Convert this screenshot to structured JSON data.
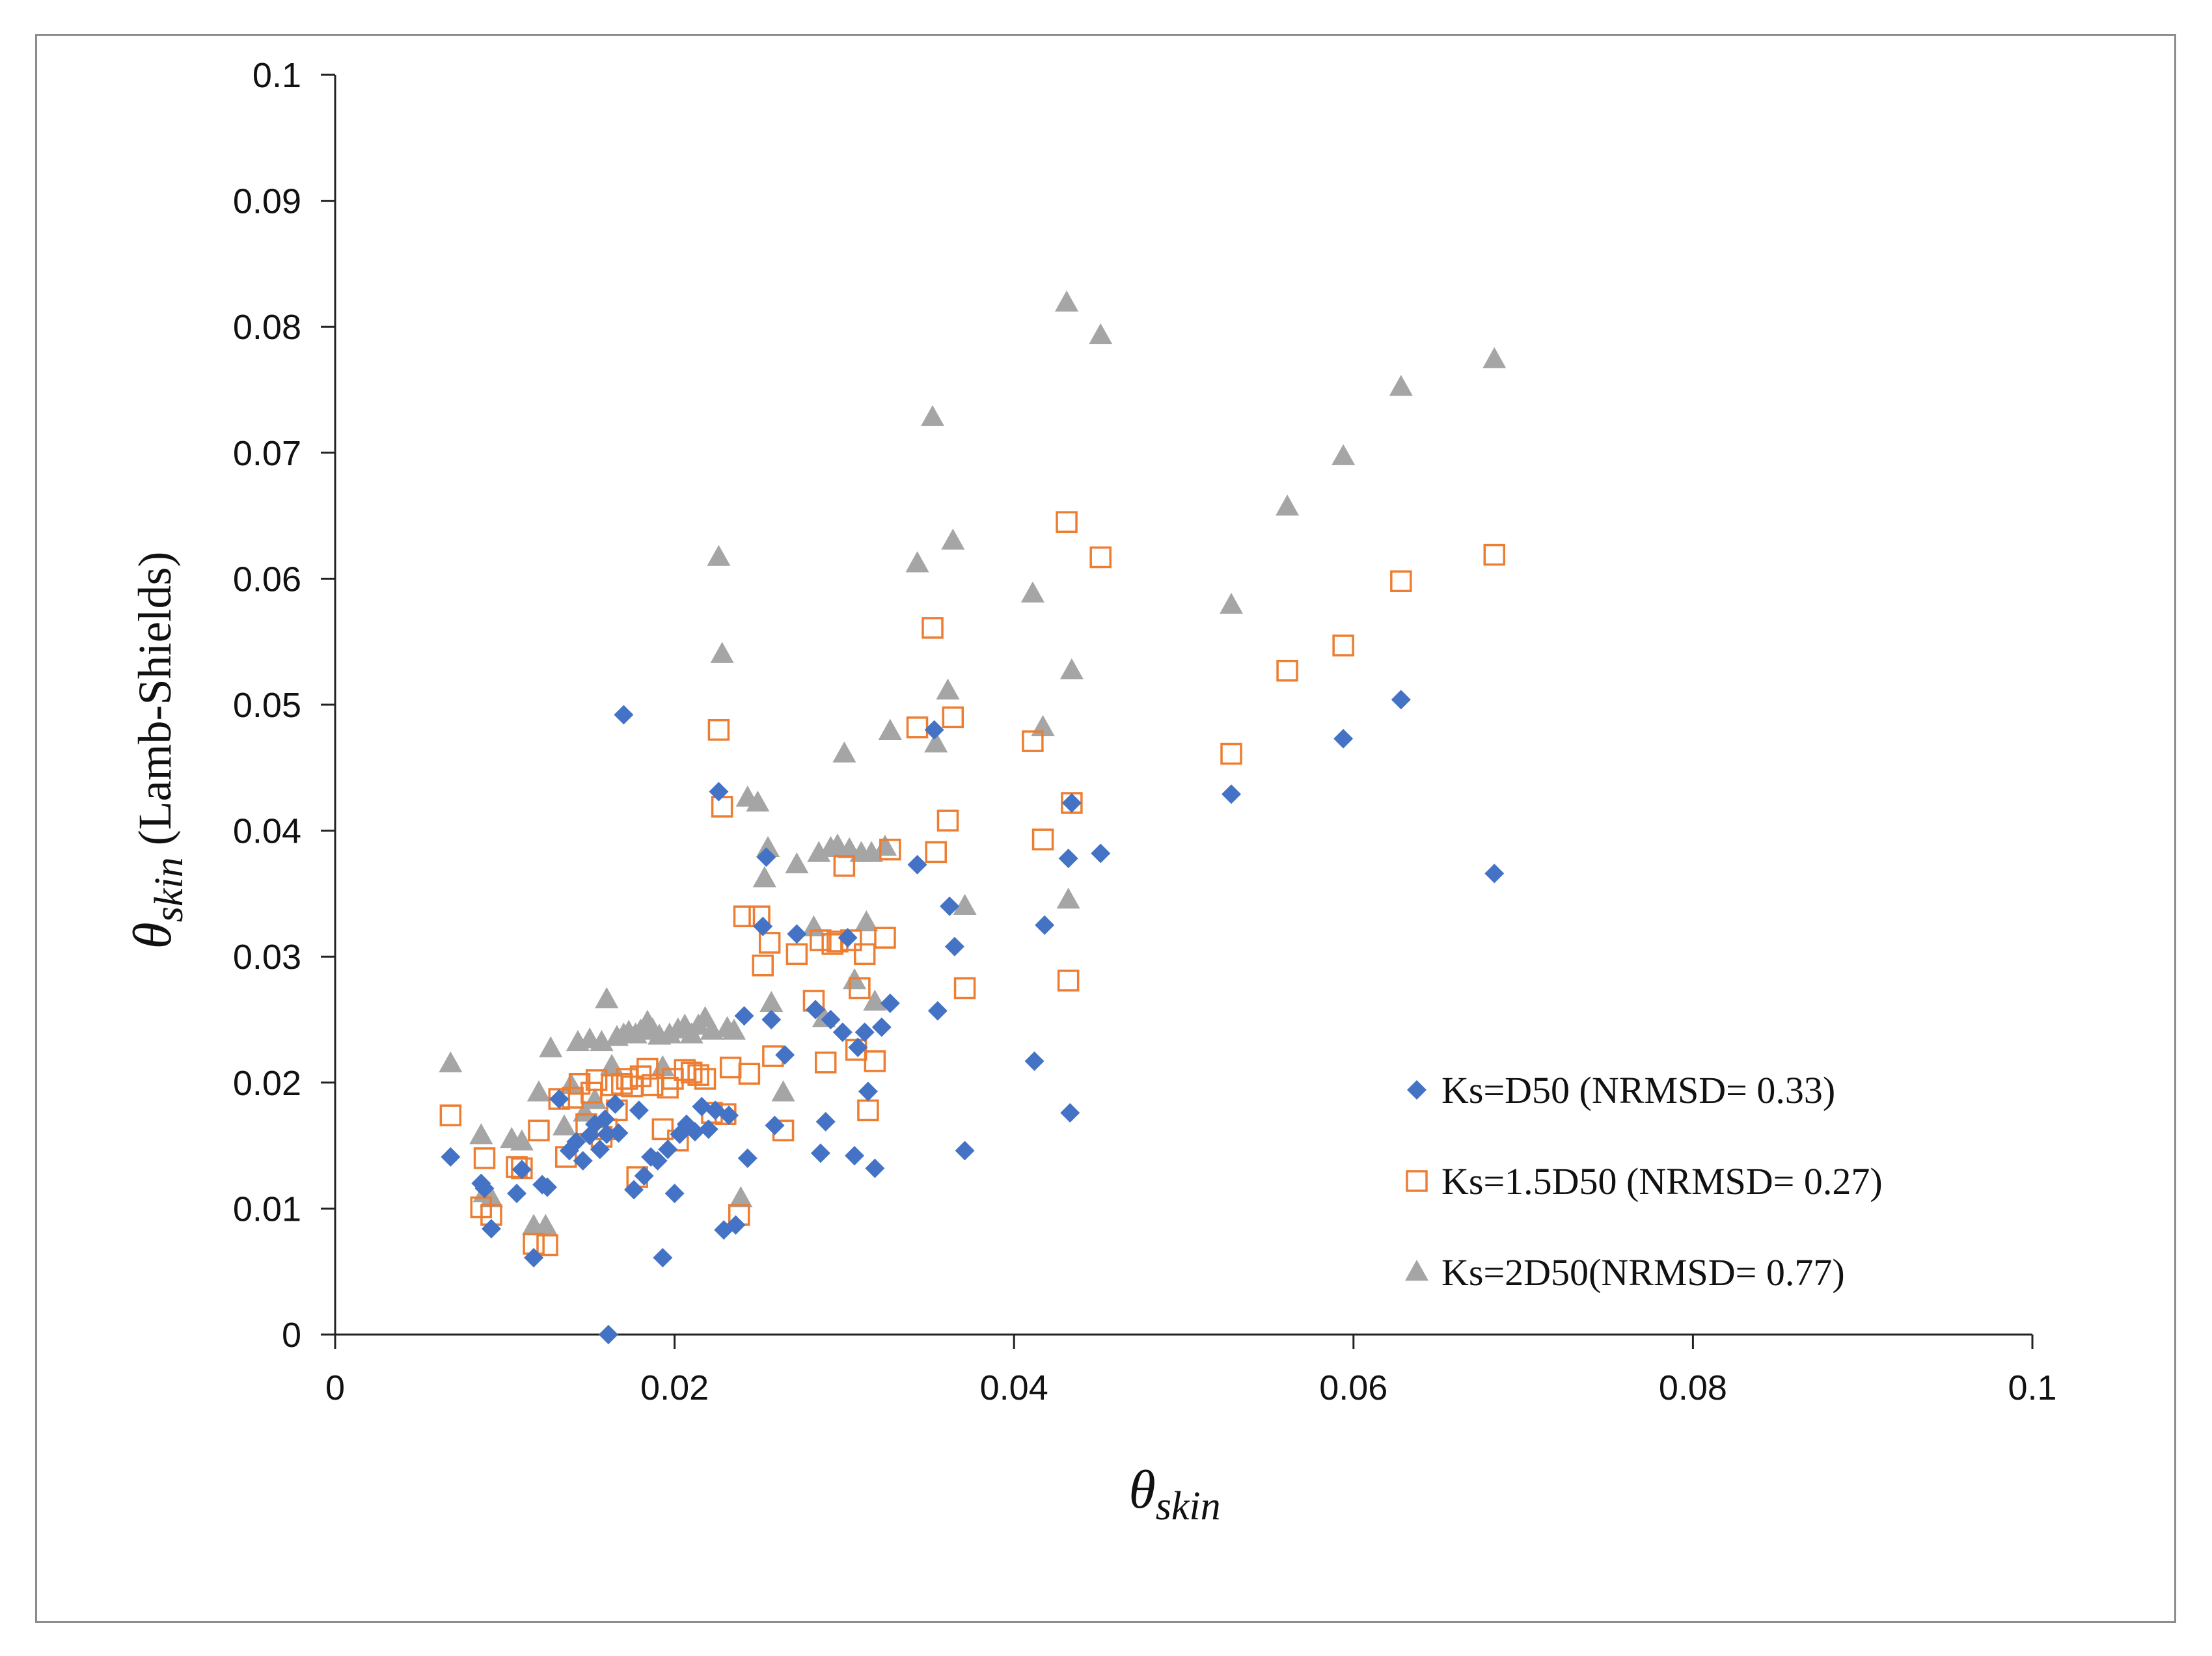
{
  "chart_data": {
    "type": "scatter",
    "title": "",
    "xlabel": {
      "symbol": "θ",
      "subscript": "skin"
    },
    "ylabel": {
      "symbol": "θ",
      "subscript": "skin",
      "suffix": " (Lamb-Shields)"
    },
    "xlim": [
      0,
      0.1
    ],
    "ylim": [
      0,
      0.1
    ],
    "x_ticks": [
      "0",
      "0.02",
      "0.04",
      "0.06",
      "0.08",
      "0.1"
    ],
    "y_ticks": [
      "0",
      "0.01",
      "0.02",
      "0.03",
      "0.04",
      "0.05",
      "0.06",
      "0.07",
      "0.08",
      "0.09",
      "0.1"
    ],
    "grid": false,
    "legend_position": "lower-right",
    "series": [
      {
        "name": "Ks=D50 (NRMSD= 0.33)",
        "marker": "diamond",
        "color": "#4472c4",
        "points": [
          [
            0.0068,
            0.0141
          ],
          [
            0.0086,
            0.012
          ],
          [
            0.0088,
            0.0116
          ],
          [
            0.0092,
            0.0084
          ],
          [
            0.0107,
            0.0112
          ],
          [
            0.011,
            0.0131
          ],
          [
            0.0117,
            0.0061
          ],
          [
            0.0122,
            0.0119
          ],
          [
            0.0125,
            0.0117
          ],
          [
            0.0132,
            0.0187
          ],
          [
            0.0138,
            0.0146
          ],
          [
            0.0142,
            0.0153
          ],
          [
            0.0146,
            0.0138
          ],
          [
            0.015,
            0.0158
          ],
          [
            0.0153,
            0.0167
          ],
          [
            0.0156,
            0.0147
          ],
          [
            0.0159,
            0.0171
          ],
          [
            0.016,
            0.0159
          ],
          [
            0.0161,
            0.0
          ],
          [
            0.0165,
            0.0183
          ],
          [
            0.0167,
            0.016
          ],
          [
            0.017,
            0.0492
          ],
          [
            0.0176,
            0.0115
          ],
          [
            0.0179,
            0.0178
          ],
          [
            0.0182,
            0.0126
          ],
          [
            0.0186,
            0.0141
          ],
          [
            0.019,
            0.0138
          ],
          [
            0.0193,
            0.0061
          ],
          [
            0.0196,
            0.0147
          ],
          [
            0.02,
            0.0112
          ],
          [
            0.0203,
            0.0159
          ],
          [
            0.0207,
            0.0167
          ],
          [
            0.0212,
            0.0161
          ],
          [
            0.0216,
            0.0181
          ],
          [
            0.022,
            0.0163
          ],
          [
            0.0224,
            0.0178
          ],
          [
            0.0226,
            0.0431
          ],
          [
            0.0229,
            0.0083
          ],
          [
            0.0232,
            0.0174
          ],
          [
            0.0236,
            0.0087
          ],
          [
            0.0241,
            0.0253
          ],
          [
            0.0243,
            0.014
          ],
          [
            0.0252,
            0.0324
          ],
          [
            0.0254,
            0.0379
          ],
          [
            0.0257,
            0.025
          ],
          [
            0.0259,
            0.0166
          ],
          [
            0.0265,
            0.0222
          ],
          [
            0.0272,
            0.0318
          ],
          [
            0.0283,
            0.0258
          ],
          [
            0.0286,
            0.0144
          ],
          [
            0.0289,
            0.0169
          ],
          [
            0.0292,
            0.025
          ],
          [
            0.0299,
            0.024
          ],
          [
            0.0302,
            0.0315
          ],
          [
            0.0306,
            0.0142
          ],
          [
            0.0308,
            0.0228
          ],
          [
            0.0312,
            0.024
          ],
          [
            0.0314,
            0.0193
          ],
          [
            0.0318,
            0.0132
          ],
          [
            0.0322,
            0.0244
          ],
          [
            0.0327,
            0.0263
          ],
          [
            0.0343,
            0.0373
          ],
          [
            0.0353,
            0.048
          ],
          [
            0.0355,
            0.0257
          ],
          [
            0.0362,
            0.034
          ],
          [
            0.0365,
            0.0308
          ],
          [
            0.0371,
            0.0146
          ],
          [
            0.0412,
            0.0217
          ],
          [
            0.0418,
            0.0325
          ],
          [
            0.0432,
            0.0378
          ],
          [
            0.0433,
            0.0176
          ],
          [
            0.0434,
            0.0422
          ],
          [
            0.0451,
            0.0382
          ],
          [
            0.0528,
            0.0429
          ],
          [
            0.0594,
            0.0473
          ],
          [
            0.0628,
            0.0504
          ],
          [
            0.0683,
            0.0366
          ]
        ]
      },
      {
        "name": "Ks=1.5D50 (NRMSD= 0.27)",
        "marker": "square-open",
        "color": "#ed7d31",
        "points": [
          [
            0.0068,
            0.0174
          ],
          [
            0.0086,
            0.0101
          ],
          [
            0.0088,
            0.014
          ],
          [
            0.0092,
            0.0095
          ],
          [
            0.0107,
            0.0133
          ],
          [
            0.011,
            0.0132
          ],
          [
            0.0117,
            0.0072
          ],
          [
            0.012,
            0.0162
          ],
          [
            0.0125,
            0.0071
          ],
          [
            0.0132,
            0.0187
          ],
          [
            0.0136,
            0.0141
          ],
          [
            0.014,
            0.0188
          ],
          [
            0.0144,
            0.0199
          ],
          [
            0.0148,
            0.0167
          ],
          [
            0.0151,
            0.0192
          ],
          [
            0.0154,
            0.0202
          ],
          [
            0.0157,
            0.0157
          ],
          [
            0.016,
            0.0163
          ],
          [
            0.0163,
            0.0198
          ],
          [
            0.0166,
            0.0178
          ],
          [
            0.0169,
            0.0199
          ],
          [
            0.0172,
            0.0203
          ],
          [
            0.0175,
            0.0197
          ],
          [
            0.0178,
            0.0125
          ],
          [
            0.018,
            0.0205
          ],
          [
            0.0184,
            0.0211
          ],
          [
            0.0187,
            0.0198
          ],
          [
            0.0193,
            0.0163
          ],
          [
            0.0196,
            0.0196
          ],
          [
            0.0199,
            0.0203
          ],
          [
            0.0202,
            0.0154
          ],
          [
            0.0206,
            0.021
          ],
          [
            0.021,
            0.0208
          ],
          [
            0.0214,
            0.0206
          ],
          [
            0.0218,
            0.0203
          ],
          [
            0.0222,
            0.0176
          ],
          [
            0.0226,
            0.048
          ],
          [
            0.0228,
            0.0419
          ],
          [
            0.023,
            0.0175
          ],
          [
            0.0233,
            0.0212
          ],
          [
            0.0238,
            0.0095
          ],
          [
            0.0241,
            0.0332
          ],
          [
            0.0244,
            0.0207
          ],
          [
            0.025,
            0.0332
          ],
          [
            0.0252,
            0.0293
          ],
          [
            0.0256,
            0.0311
          ],
          [
            0.0258,
            0.0221
          ],
          [
            0.0264,
            0.0162
          ],
          [
            0.0272,
            0.0302
          ],
          [
            0.0282,
            0.0265
          ],
          [
            0.0286,
            0.0313
          ],
          [
            0.0289,
            0.0216
          ],
          [
            0.0293,
            0.031
          ],
          [
            0.0296,
            0.0312
          ],
          [
            0.03,
            0.0372
          ],
          [
            0.0304,
            0.0313
          ],
          [
            0.0307,
            0.0226
          ],
          [
            0.0309,
            0.0275
          ],
          [
            0.0312,
            0.0302
          ],
          [
            0.0314,
            0.0178
          ],
          [
            0.0318,
            0.0217
          ],
          [
            0.0324,
            0.0315
          ],
          [
            0.0327,
            0.0385
          ],
          [
            0.0343,
            0.0482
          ],
          [
            0.0352,
            0.0561
          ],
          [
            0.0354,
            0.0383
          ],
          [
            0.0361,
            0.0408
          ],
          [
            0.0364,
            0.049
          ],
          [
            0.0371,
            0.0275
          ],
          [
            0.0411,
            0.0471
          ],
          [
            0.0417,
            0.0393
          ],
          [
            0.0431,
            0.0645
          ],
          [
            0.0432,
            0.0281
          ],
          [
            0.0434,
            0.0422
          ],
          [
            0.0451,
            0.0617
          ],
          [
            0.0528,
            0.0461
          ],
          [
            0.0561,
            0.0527
          ],
          [
            0.0594,
            0.0547
          ],
          [
            0.0628,
            0.0598
          ],
          [
            0.0683,
            0.0619
          ]
        ]
      },
      {
        "name": "Ks=2D50(NRMSD= 0.77)",
        "marker": "triangle",
        "color": "#a5a5a5",
        "points": [
          [
            0.0068,
            0.0215
          ],
          [
            0.0086,
            0.0158
          ],
          [
            0.0088,
            0.0112
          ],
          [
            0.0092,
            0.0108
          ],
          [
            0.0104,
            0.0155
          ],
          [
            0.011,
            0.0153
          ],
          [
            0.0117,
            0.0086
          ],
          [
            0.012,
            0.0192
          ],
          [
            0.0124,
            0.0086
          ],
          [
            0.0127,
            0.0227
          ],
          [
            0.0135,
            0.0165
          ],
          [
            0.0139,
            0.0198
          ],
          [
            0.0143,
            0.0232
          ],
          [
            0.0147,
            0.0176
          ],
          [
            0.015,
            0.0234
          ],
          [
            0.0153,
            0.0186
          ],
          [
            0.0157,
            0.0232
          ],
          [
            0.016,
            0.0266
          ],
          [
            0.0163,
            0.0213
          ],
          [
            0.0166,
            0.0236
          ],
          [
            0.017,
            0.0238
          ],
          [
            0.0173,
            0.024
          ],
          [
            0.0177,
            0.0238
          ],
          [
            0.018,
            0.0241
          ],
          [
            0.0184,
            0.0248
          ],
          [
            0.0187,
            0.0242
          ],
          [
            0.0191,
            0.0237
          ],
          [
            0.0193,
            0.0212
          ],
          [
            0.0197,
            0.0238
          ],
          [
            0.0202,
            0.0242
          ],
          [
            0.0206,
            0.0245
          ],
          [
            0.021,
            0.0238
          ],
          [
            0.0214,
            0.0245
          ],
          [
            0.0218,
            0.0251
          ],
          [
            0.0222,
            0.0241
          ],
          [
            0.0226,
            0.0617
          ],
          [
            0.0228,
            0.054
          ],
          [
            0.0231,
            0.0243
          ],
          [
            0.0235,
            0.0241
          ],
          [
            0.0239,
            0.0108
          ],
          [
            0.0243,
            0.0426
          ],
          [
            0.0249,
            0.0422
          ],
          [
            0.0253,
            0.0362
          ],
          [
            0.0255,
            0.0386
          ],
          [
            0.0257,
            0.0263
          ],
          [
            0.0264,
            0.0192
          ],
          [
            0.0272,
            0.0373
          ],
          [
            0.0282,
            0.0323
          ],
          [
            0.0285,
            0.0382
          ],
          [
            0.0288,
            0.0251
          ],
          [
            0.0292,
            0.0386
          ],
          [
            0.0296,
            0.0388
          ],
          [
            0.03,
            0.0461
          ],
          [
            0.0303,
            0.0385
          ],
          [
            0.0306,
            0.0281
          ],
          [
            0.031,
            0.0382
          ],
          [
            0.0313,
            0.0327
          ],
          [
            0.0316,
            0.0382
          ],
          [
            0.0318,
            0.0264
          ],
          [
            0.0324,
            0.0387
          ],
          [
            0.0327,
            0.0479
          ],
          [
            0.0343,
            0.0612
          ],
          [
            0.0352,
            0.0728
          ],
          [
            0.0354,
            0.0469
          ],
          [
            0.0361,
            0.0511
          ],
          [
            0.0364,
            0.063
          ],
          [
            0.0371,
            0.034
          ],
          [
            0.0411,
            0.0588
          ],
          [
            0.0417,
            0.0482
          ],
          [
            0.0431,
            0.0819
          ],
          [
            0.0432,
            0.0345
          ],
          [
            0.0434,
            0.0527
          ],
          [
            0.0451,
            0.0793
          ],
          [
            0.0528,
            0.0579
          ],
          [
            0.0561,
            0.0657
          ],
          [
            0.0594,
            0.0697
          ],
          [
            0.0628,
            0.0752
          ],
          [
            0.0683,
            0.0774
          ]
        ]
      }
    ]
  }
}
